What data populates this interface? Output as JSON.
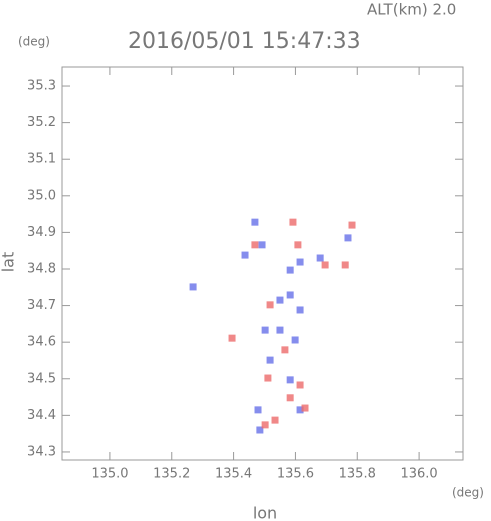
{
  "chart_data": {
    "type": "scatter",
    "title": "2016/05/01 15:47:33",
    "subtitle": "ALT(km) 2.0",
    "x_label": "lon",
    "y_label": "lat",
    "x_unit": "(deg)",
    "y_unit": "(deg)",
    "xlim": [
      134.845,
      136.142
    ],
    "ylim": [
      34.278,
      35.352
    ],
    "xticks": [
      {
        "value": 135,
        "label": "135.0"
      },
      135.2,
      135.4,
      135.6,
      135.8,
      {
        "value": 136,
        "label": "136.0"
      }
    ],
    "yticks": [
      34.3,
      34.4,
      34.5,
      34.6,
      34.7,
      34.8,
      34.9,
      {
        "value": 35,
        "label": "35.0"
      },
      35.1,
      35.2,
      35.3
    ],
    "series": [
      {
        "color": "#6670e8",
        "x": [
          135.469,
          135.492,
          135.437,
          135.615,
          135.68,
          135.77,
          135.583,
          135.55,
          135.615,
          135.502,
          135.599,
          135.518,
          135.583,
          135.479,
          135.615,
          135.485,
          135.269,
          135.55,
          135.583
        ],
        "values": [
          34.928,
          34.866,
          34.838,
          34.819,
          34.83,
          34.885,
          34.797,
          34.715,
          34.688,
          34.633,
          34.606,
          34.551,
          34.497,
          34.415,
          34.415,
          34.36,
          34.751,
          34.633,
          34.729
        ]
      },
      {
        "color": "#ec6a6a",
        "x": [
          135.592,
          135.469,
          135.608,
          135.696,
          135.761,
          135.783,
          135.395,
          135.566,
          135.511,
          135.615,
          135.583,
          135.631,
          135.502,
          135.534,
          135.518
        ],
        "values": [
          34.928,
          34.866,
          34.866,
          34.811,
          34.811,
          34.92,
          34.611,
          34.579,
          34.502,
          34.483,
          34.448,
          34.42,
          34.374,
          34.387,
          34.702
        ]
      }
    ]
  }
}
